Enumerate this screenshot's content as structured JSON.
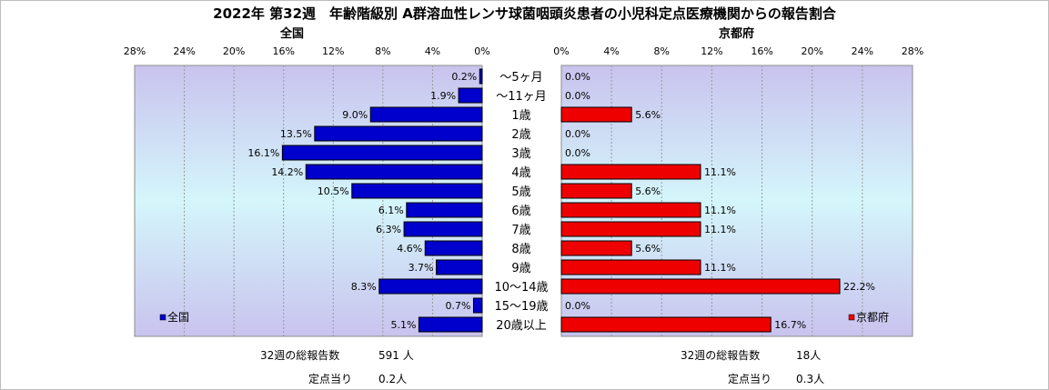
{
  "title": "2022年 第32週　年齢階級別 A群溶血性レンサ球菌咽頭炎患者の小児科定点医療機関からの報告割合",
  "chart_data": [
    {
      "type": "bar",
      "title": "全国",
      "legend": {
        "label": "全国",
        "position": "bottom-left"
      },
      "orientation": "horizontal-reversed",
      "xlim": [
        0,
        28
      ],
      "ticks": [
        "0%",
        "4%",
        "8%",
        "12%",
        "16%",
        "20%",
        "24%",
        "28%"
      ],
      "tick_values": [
        0,
        4,
        8,
        12,
        16,
        20,
        24,
        28
      ],
      "color": "#0000cc",
      "categories": [
        "～5ヶ月",
        "～11ヶ月",
        "1歳",
        "2歳",
        "3歳",
        "4歳",
        "5歳",
        "6歳",
        "7歳",
        "8歳",
        "9歳",
        "10～14歳",
        "15～19歳",
        "20歳以上"
      ],
      "values": [
        0.2,
        1.9,
        9.0,
        13.5,
        16.1,
        14.2,
        10.5,
        6.1,
        6.3,
        4.6,
        3.7,
        8.3,
        0.7,
        5.1
      ],
      "value_labels": [
        "0.2%",
        "1.9%",
        "9.0%",
        "13.5%",
        "16.1%",
        "14.2%",
        "10.5%",
        "6.1%",
        "6.3%",
        "4.6%",
        "3.7%",
        "8.3%",
        "0.7%",
        "5.1%"
      ]
    },
    {
      "type": "bar",
      "title": "京都府",
      "legend": {
        "label": "京都府",
        "position": "bottom-right"
      },
      "orientation": "horizontal",
      "xlim": [
        0,
        28
      ],
      "ticks": [
        "0%",
        "4%",
        "8%",
        "12%",
        "16%",
        "20%",
        "24%",
        "28%"
      ],
      "tick_values": [
        0,
        4,
        8,
        12,
        16,
        20,
        24,
        28
      ],
      "color": "#ee0000",
      "categories": [
        "～5ヶ月",
        "～11ヶ月",
        "1歳",
        "2歳",
        "3歳",
        "4歳",
        "5歳",
        "6歳",
        "7歳",
        "8歳",
        "9歳",
        "10～14歳",
        "15～19歳",
        "20歳以上"
      ],
      "values": [
        0.0,
        0.0,
        5.6,
        0.0,
        0.0,
        11.1,
        5.6,
        11.1,
        11.1,
        5.6,
        11.1,
        22.2,
        0.0,
        16.7
      ],
      "value_labels": [
        "0.0%",
        "0.0%",
        "5.6%",
        "0.0%",
        "0.0%",
        "11.1%",
        "5.6%",
        "11.1%",
        "11.1%",
        "5.6%",
        "11.1%",
        "22.2%",
        "0.0%",
        "16.7%"
      ]
    }
  ],
  "footer": {
    "left": {
      "total_label": "32週の総報告数",
      "total_value": "591 人",
      "per_label": "定点当り",
      "per_value": "0.2人"
    },
    "right": {
      "total_label": "32週の総報告数",
      "total_value": "18人",
      "per_label": "定点当り",
      "per_value": "0.3人"
    }
  }
}
